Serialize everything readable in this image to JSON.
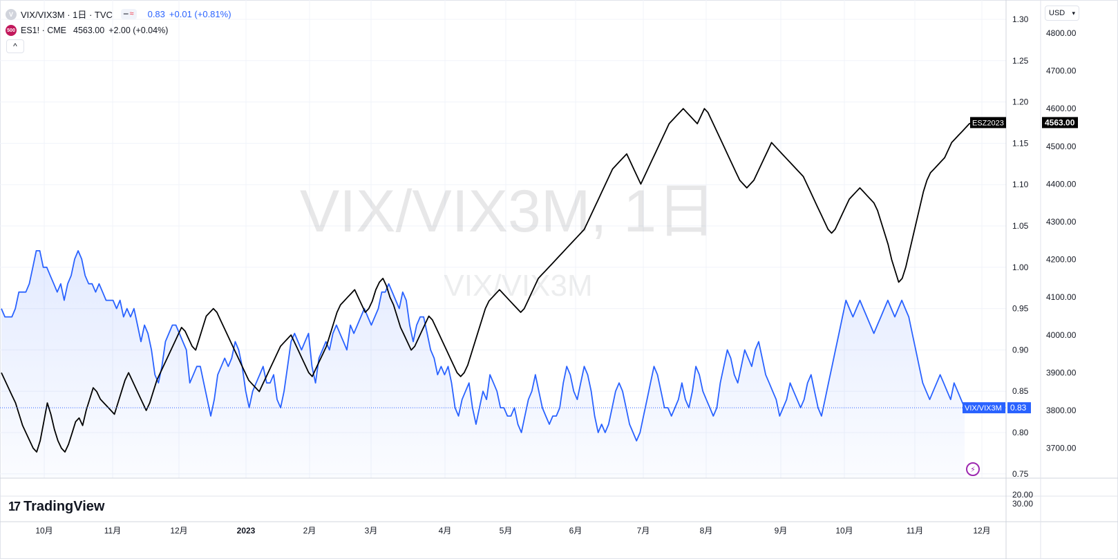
{
  "legend": {
    "main_symbol": "VIX/VIX3M · 1日 · TVC",
    "main_icon": "V",
    "main_value": "0.83",
    "main_change": "+0.01 (+0.81%)",
    "compare_symbol": "ES1! · CME",
    "compare_icon": "500",
    "compare_value": "4563.00",
    "compare_change": "+2.00 (+0.04%)",
    "collapse_icon": "chevron-up-icon",
    "collapse_glyph": "^"
  },
  "watermark": {
    "big": "VIX/VIX3M, 1日",
    "small": "VIX/VIX3M"
  },
  "currency": "USD",
  "logo_text": "TradingView",
  "colors": {
    "ratio_line": "#2962ff",
    "es_line": "#000000",
    "ratio_label_bg": "#2962ff",
    "es_label_bg": "#000000",
    "grid": "#f0f3fa"
  },
  "chart_data": {
    "type": "line",
    "x_labels": [
      "10月",
      "11月",
      "12月",
      "2023",
      "2月",
      "3月",
      "4月",
      "5月",
      "6月",
      "7月",
      "8月",
      "9月",
      "10月",
      "11月",
      "12月"
    ],
    "left_axis_ticks": [
      "1.30",
      "1.25",
      "1.20",
      "1.15",
      "1.10",
      "1.05",
      "1.00",
      "0.95",
      "0.90",
      "0.85",
      "0.80",
      "0.75"
    ],
    "right_axis_ticks": [
      "4800.00",
      "4700.00",
      "4600.00",
      "4500.00",
      "4400.00",
      "4300.00",
      "4200.00",
      "4100.00",
      "4000.00",
      "3900.00",
      "3800.00",
      "3700.00"
    ],
    "lower_pane_ticks": [
      "20.00",
      "30.00"
    ],
    "ylim_ratio": [
      0.75,
      1.3
    ],
    "ylim_es": [
      3620,
      4840
    ],
    "series": [
      {
        "name": "VIX/VIX3M",
        "axis": "ratio",
        "last_value": "0.83",
        "values": [
          0.95,
          0.94,
          0.94,
          0.94,
          0.95,
          0.97,
          0.97,
          0.97,
          0.98,
          1.0,
          1.02,
          1.02,
          1.0,
          1.0,
          0.99,
          0.98,
          0.97,
          0.98,
          0.96,
          0.98,
          0.99,
          1.01,
          1.02,
          1.01,
          0.99,
          0.98,
          0.98,
          0.97,
          0.98,
          0.97,
          0.96,
          0.96,
          0.96,
          0.95,
          0.96,
          0.94,
          0.95,
          0.94,
          0.95,
          0.93,
          0.91,
          0.93,
          0.92,
          0.9,
          0.87,
          0.86,
          0.88,
          0.91,
          0.92,
          0.93,
          0.93,
          0.92,
          0.91,
          0.9,
          0.86,
          0.87,
          0.88,
          0.88,
          0.86,
          0.84,
          0.82,
          0.84,
          0.87,
          0.88,
          0.89,
          0.88,
          0.89,
          0.91,
          0.9,
          0.88,
          0.85,
          0.83,
          0.85,
          0.86,
          0.87,
          0.88,
          0.86,
          0.86,
          0.87,
          0.84,
          0.83,
          0.85,
          0.88,
          0.91,
          0.92,
          0.91,
          0.9,
          0.91,
          0.92,
          0.88,
          0.86,
          0.89,
          0.9,
          0.91,
          0.9,
          0.92,
          0.93,
          0.92,
          0.91,
          0.9,
          0.93,
          0.92,
          0.93,
          0.94,
          0.95,
          0.94,
          0.93,
          0.94,
          0.95,
          0.97,
          0.97,
          0.98,
          0.97,
          0.96,
          0.95,
          0.97,
          0.96,
          0.93,
          0.91,
          0.93,
          0.94,
          0.94,
          0.92,
          0.9,
          0.89,
          0.87,
          0.88,
          0.87,
          0.88,
          0.86,
          0.83,
          0.82,
          0.84,
          0.85,
          0.86,
          0.83,
          0.81,
          0.83,
          0.85,
          0.84,
          0.87,
          0.86,
          0.85,
          0.83,
          0.83,
          0.82,
          0.82,
          0.83,
          0.81,
          0.8,
          0.82,
          0.84,
          0.85,
          0.87,
          0.85,
          0.83,
          0.82,
          0.81,
          0.82,
          0.82,
          0.83,
          0.86,
          0.88,
          0.87,
          0.85,
          0.84,
          0.86,
          0.88,
          0.87,
          0.85,
          0.82,
          0.8,
          0.81,
          0.8,
          0.81,
          0.83,
          0.85,
          0.86,
          0.85,
          0.83,
          0.81,
          0.8,
          0.79,
          0.8,
          0.82,
          0.84,
          0.86,
          0.88,
          0.87,
          0.85,
          0.83,
          0.83,
          0.82,
          0.83,
          0.84,
          0.86,
          0.84,
          0.83,
          0.85,
          0.88,
          0.87,
          0.85,
          0.84,
          0.83,
          0.82,
          0.83,
          0.86,
          0.88,
          0.9,
          0.89,
          0.87,
          0.86,
          0.88,
          0.9,
          0.89,
          0.88,
          0.9,
          0.91,
          0.89,
          0.87,
          0.86,
          0.85,
          0.84,
          0.82,
          0.83,
          0.84,
          0.86,
          0.85,
          0.84,
          0.83,
          0.84,
          0.86,
          0.87,
          0.85,
          0.83,
          0.82,
          0.84,
          0.86,
          0.88,
          0.9,
          0.92,
          0.94,
          0.96,
          0.95,
          0.94,
          0.95,
          0.96,
          0.95,
          0.94,
          0.93,
          0.92,
          0.93,
          0.94,
          0.95,
          0.96,
          0.95,
          0.94,
          0.95,
          0.96,
          0.95,
          0.94,
          0.92,
          0.9,
          0.88,
          0.86,
          0.85,
          0.84,
          0.85,
          0.86,
          0.87,
          0.86,
          0.85,
          0.84,
          0.86,
          0.85,
          0.84,
          0.83
        ]
      },
      {
        "name": "ES1!",
        "axis": "es",
        "last_value": "4563.00",
        "tag": "ESZ2023",
        "values": [
          3900,
          3880,
          3860,
          3840,
          3820,
          3790,
          3760,
          3740,
          3720,
          3700,
          3690,
          3720,
          3770,
          3820,
          3790,
          3750,
          3720,
          3700,
          3690,
          3710,
          3740,
          3770,
          3780,
          3760,
          3800,
          3830,
          3860,
          3850,
          3830,
          3820,
          3810,
          3800,
          3790,
          3820,
          3850,
          3880,
          3900,
          3880,
          3860,
          3840,
          3820,
          3800,
          3820,
          3850,
          3880,
          3900,
          3920,
          3940,
          3960,
          3980,
          4000,
          4020,
          4010,
          3990,
          3970,
          3960,
          3990,
          4020,
          4050,
          4060,
          4070,
          4060,
          4040,
          4020,
          4000,
          3980,
          3960,
          3940,
          3920,
          3900,
          3880,
          3870,
          3860,
          3850,
          3870,
          3890,
          3910,
          3930,
          3950,
          3970,
          3980,
          3990,
          4000,
          3980,
          3960,
          3940,
          3920,
          3900,
          3890,
          3910,
          3930,
          3950,
          3970,
          4000,
          4030,
          4060,
          4080,
          4090,
          4100,
          4110,
          4120,
          4100,
          4080,
          4060,
          4070,
          4090,
          4120,
          4140,
          4150,
          4130,
          4100,
          4080,
          4050,
          4020,
          4000,
          3980,
          3960,
          3970,
          3990,
          4010,
          4030,
          4050,
          4040,
          4020,
          4000,
          3980,
          3960,
          3940,
          3920,
          3900,
          3890,
          3900,
          3920,
          3950,
          3980,
          4010,
          4040,
          4070,
          4090,
          4100,
          4110,
          4120,
          4110,
          4100,
          4090,
          4080,
          4070,
          4060,
          4070,
          4090,
          4110,
          4130,
          4150,
          4160,
          4170,
          4180,
          4190,
          4200,
          4210,
          4220,
          4230,
          4240,
          4250,
          4260,
          4270,
          4280,
          4300,
          4320,
          4340,
          4360,
          4380,
          4400,
          4420,
          4440,
          4450,
          4460,
          4470,
          4480,
          4460,
          4440,
          4420,
          4400,
          4420,
          4440,
          4460,
          4480,
          4500,
          4520,
          4540,
          4560,
          4570,
          4580,
          4590,
          4600,
          4590,
          4580,
          4570,
          4560,
          4580,
          4600,
          4590,
          4570,
          4550,
          4530,
          4510,
          4490,
          4470,
          4450,
          4430,
          4410,
          4400,
          4390,
          4400,
          4410,
          4430,
          4450,
          4470,
          4490,
          4510,
          4500,
          4490,
          4480,
          4470,
          4460,
          4450,
          4440,
          4430,
          4420,
          4400,
          4380,
          4360,
          4340,
          4320,
          4300,
          4280,
          4270,
          4280,
          4300,
          4320,
          4340,
          4360,
          4370,
          4380,
          4390,
          4380,
          4370,
          4360,
          4350,
          4330,
          4300,
          4270,
          4240,
          4200,
          4170,
          4140,
          4150,
          4180,
          4220,
          4260,
          4300,
          4340,
          4380,
          4410,
          4430,
          4440,
          4450,
          4460,
          4470,
          4490,
          4510,
          4520,
          4530,
          4540,
          4550,
          4560,
          4563
        ]
      }
    ]
  }
}
